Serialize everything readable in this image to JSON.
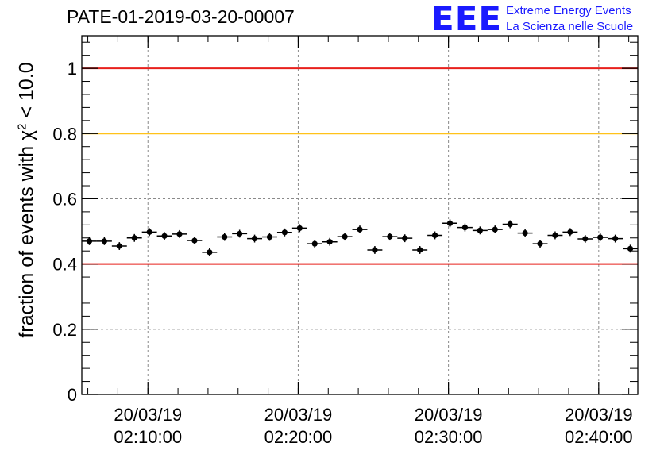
{
  "chart_data": {
    "type": "scatter",
    "title": "PATE-01-2019-03-20-00007",
    "ylabel": "fraction of events with χ² < 10.0",
    "ylabel_parts": {
      "before": "fraction of events with ",
      "symbol": "χ",
      "sup": "2",
      "after": " < 10.0"
    },
    "xlabel": "",
    "ylim": [
      0,
      1.1
    ],
    "yticks": [
      {
        "value": 0,
        "label": "0"
      },
      {
        "value": 0.2,
        "label": "0.2"
      },
      {
        "value": 0.4,
        "label": "0.4"
      },
      {
        "value": 0.6,
        "label": "0.6"
      },
      {
        "value": 0.8,
        "label": "0.8"
      },
      {
        "value": 1.0,
        "label": "1"
      }
    ],
    "xlim_minutes": [
      0,
      37
    ],
    "xticks": [
      {
        "minutes": 4.4,
        "date": "20/03/19",
        "time": "02:10:00"
      },
      {
        "minutes": 14.4,
        "date": "20/03/19",
        "time": "02:20:00"
      },
      {
        "minutes": 24.4,
        "date": "20/03/19",
        "time": "02:30:00"
      },
      {
        "minutes": 34.4,
        "date": "20/03/19",
        "time": "02:40:00"
      }
    ],
    "y": [
      0.47,
      0.47,
      0.455,
      0.48,
      0.498,
      0.486,
      0.492,
      0.472,
      0.436,
      0.483,
      0.493,
      0.478,
      0.483,
      0.497,
      0.51,
      0.462,
      0.468,
      0.484,
      0.506,
      0.443,
      0.484,
      0.479,
      0.443,
      0.488,
      0.525,
      0.512,
      0.503,
      0.506,
      0.522,
      0.495,
      0.462,
      0.488,
      0.498,
      0.477,
      0.482,
      0.478,
      0.447
    ],
    "y_err": 0.012,
    "reference_lines": [
      {
        "value": 1.0,
        "color": "#e8201c"
      },
      {
        "value": 0.8,
        "color": "#ffc21a"
      },
      {
        "value": 0.4,
        "color": "#e8201c"
      }
    ],
    "grid": true,
    "marker_color": "#000000"
  },
  "logo": {
    "mark": "EEE",
    "line1": "Extreme Energy Events",
    "line2": "La Scienza nelle Scuole",
    "color": "#1a1aff"
  }
}
